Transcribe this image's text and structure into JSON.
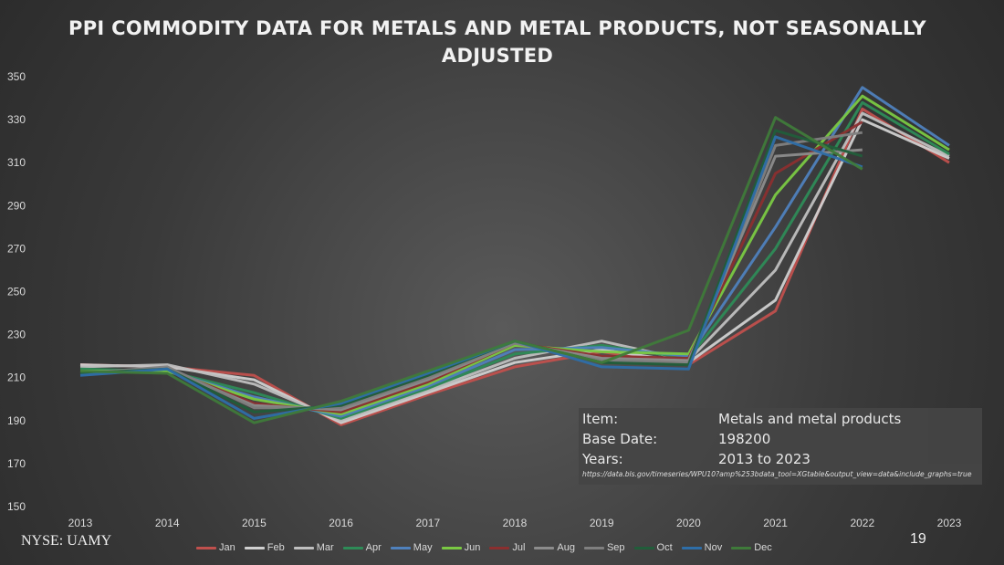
{
  "slide": {
    "title": "PPI COMMODITY DATA FOR METALS AND METAL PRODUCTS, NOT SEASONALLY ADJUSTED",
    "footer_left": "NYSE: UAMY",
    "page_number": "19"
  },
  "info_box": {
    "rows": [
      {
        "key": "Item:",
        "value": "Metals and metal products"
      },
      {
        "key": "Base Date:",
        "value": "198200"
      },
      {
        "key": "Years:",
        "value": "2013 to 2023"
      }
    ],
    "url": "https://data.bls.gov/timeseries/WPU10?amp%253bdata_tool=XGtable&output_view=data&include_graphs=true"
  },
  "chart_data": {
    "type": "line",
    "title": "PPI COMMODITY DATA FOR METALS AND METAL PRODUCTS, NOT SEASONALLY ADJUSTED",
    "xlabel": "",
    "ylabel": "",
    "categories": [
      "2013",
      "2014",
      "2015",
      "2016",
      "2017",
      "2018",
      "2019",
      "2020",
      "2021",
      "2022",
      "2023"
    ],
    "ylim": [
      150,
      350
    ],
    "yticks": [
      150,
      170,
      190,
      210,
      230,
      250,
      270,
      290,
      310,
      330,
      350
    ],
    "grid": false,
    "legend_position": "bottom",
    "series": [
      {
        "name": "Jan",
        "color": "#c0504d",
        "values": [
          216,
          215,
          211,
          188,
          202,
          215,
          222,
          216,
          241,
          335,
          310
        ]
      },
      {
        "name": "Feb",
        "color": "#d0d0d0",
        "values": [
          216,
          215,
          209,
          189,
          203,
          217,
          223,
          217,
          246,
          330,
          312
        ]
      },
      {
        "name": "Mar",
        "color": "#bfbfbf",
        "values": [
          215,
          216,
          207,
          190,
          204,
          219,
          227,
          218,
          260,
          333,
          313
        ]
      },
      {
        "name": "Apr",
        "color": "#2e8b57",
        "values": [
          214,
          213,
          203,
          191,
          205,
          221,
          225,
          219,
          270,
          338,
          314
        ]
      },
      {
        "name": "May",
        "color": "#4f81bd",
        "values": [
          213,
          213,
          201,
          192,
          206,
          223,
          224,
          220,
          280,
          345,
          318
        ]
      },
      {
        "name": "Jun",
        "color": "#7ac943",
        "values": [
          213,
          213,
          200,
          193,
          207,
          225,
          222,
          221,
          295,
          341,
          316
        ]
      },
      {
        "name": "Jul",
        "color": "#8b2f2f",
        "values": [
          212,
          214,
          198,
          194,
          208,
          226,
          220,
          219,
          305,
          329,
          null
        ]
      },
      {
        "name": "Aug",
        "color": "#8c8c8c",
        "values": [
          212,
          214,
          197,
          195,
          209,
          226,
          219,
          218,
          313,
          316,
          null
        ]
      },
      {
        "name": "Sep",
        "color": "#7f7f7f",
        "values": [
          212,
          215,
          196,
          196,
          210,
          226,
          218,
          217,
          318,
          324,
          null
        ]
      },
      {
        "name": "Oct",
        "color": "#215d3a",
        "values": [
          212,
          214,
          194,
          197,
          211,
          227,
          217,
          216,
          325,
          313,
          null
        ]
      },
      {
        "name": "Nov",
        "color": "#2e6ea8",
        "values": [
          211,
          214,
          191,
          198,
          212,
          227,
          215,
          214,
          322,
          308,
          null
        ]
      },
      {
        "name": "Dec",
        "color": "#3f7a3a",
        "values": [
          213,
          212,
          189,
          199,
          213,
          227,
          217,
          232,
          331,
          307,
          null
        ]
      }
    ]
  }
}
